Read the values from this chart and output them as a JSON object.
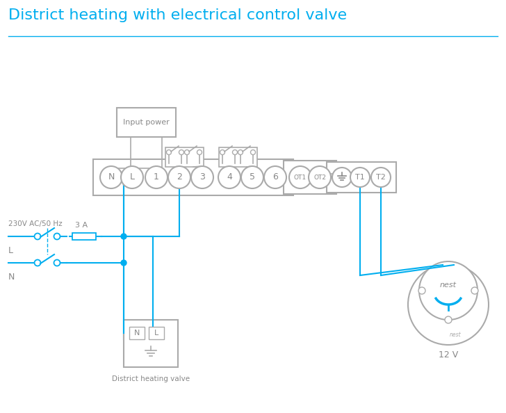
{
  "title": "District heating with electrical control valve",
  "title_color": "#00AEEF",
  "title_fontsize": 16,
  "line_color": "#00AEEF",
  "component_color": "#aaaaaa",
  "text_color": "#888888",
  "bg_color": "#ffffff",
  "terminal_labels_main": [
    "N",
    "L",
    "1",
    "2",
    "3",
    "4",
    "5",
    "6"
  ],
  "terminal_labels_ot": [
    "OT1",
    "OT2"
  ],
  "terminal_label_gnd": "⏚",
  "terminal_labels_t": [
    "T1",
    "T2"
  ],
  "label_230v": "230V AC/50 Hz",
  "label_L": "L",
  "label_N": "N",
  "label_3A": "3 A",
  "label_input_power": "Input power",
  "label_district": "District heating valve",
  "label_12v": "12 V",
  "label_nest": "nest"
}
